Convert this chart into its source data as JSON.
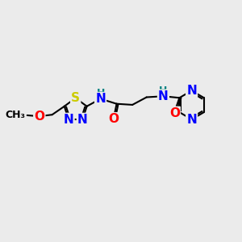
{
  "bg_color": "#ebebeb",
  "atom_colors": {
    "N": "#0000FF",
    "S": "#CCCC00",
    "O": "#FF0000",
    "C": "#000000",
    "H": "#008080"
  },
  "bond_color": "#000000",
  "bond_width": 1.5,
  "font_size_atoms": 11,
  "font_size_small": 9,
  "font_size_methoxy": 9
}
